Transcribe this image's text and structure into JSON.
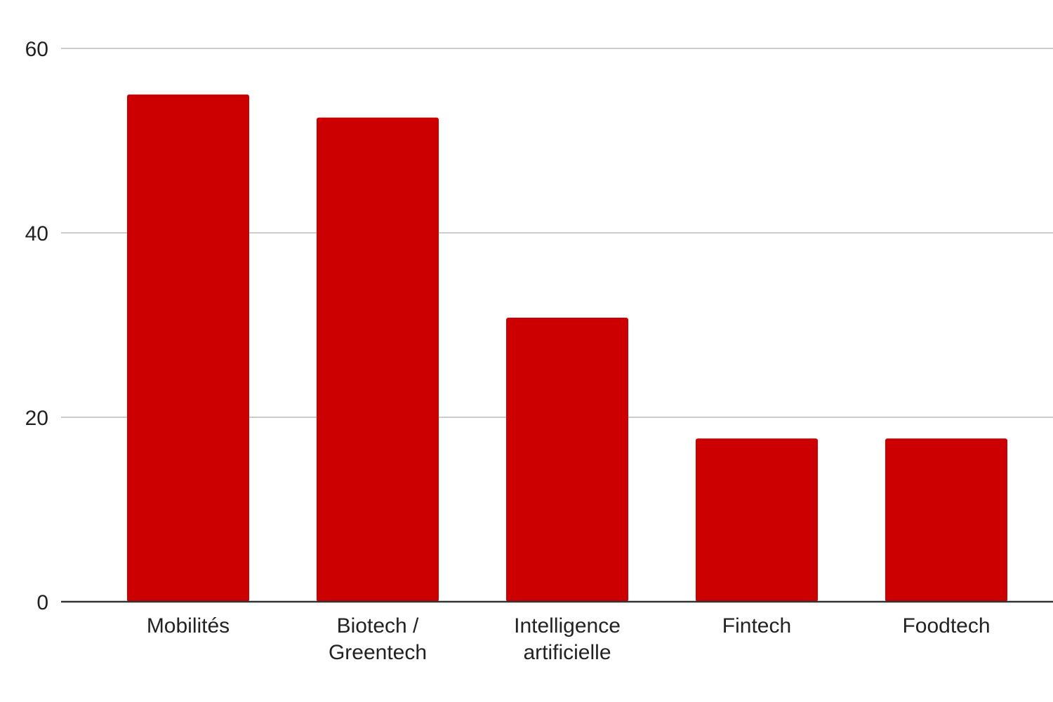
{
  "chart_data": {
    "type": "bar",
    "title": "",
    "xlabel": "",
    "ylabel": "",
    "categories": [
      [
        "Mobilités"
      ],
      [
        "Biotech /",
        "Greentech"
      ],
      [
        "Intelligence",
        "artificielle"
      ],
      [
        "Fintech"
      ],
      [
        "Foodtech"
      ]
    ],
    "values": [
      55,
      52.5,
      30.8,
      17.7,
      17.7
    ],
    "ylim": [
      0,
      60
    ],
    "yticks": [
      0,
      20,
      40,
      60
    ],
    "grid": true,
    "legend": "none",
    "bar_color": "#cc0000"
  }
}
